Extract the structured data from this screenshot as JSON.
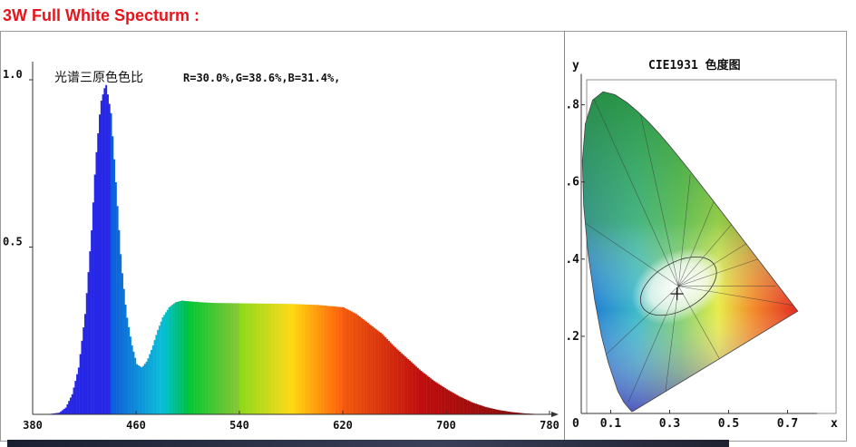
{
  "page": {
    "title": "3W Full White Specturm :"
  },
  "chart_data": [
    {
      "type": "area",
      "annotation": "光谱三原色色比",
      "ratio_text": "R=30.0%,G=38.6%,B=31.4%,",
      "ratios": {
        "R": 30.0,
        "G": 38.6,
        "B": 31.4
      },
      "xlim": [
        380,
        780
      ],
      "ylim": [
        0,
        1.0
      ],
      "x_ticks": [
        "380",
        "460",
        "540",
        "620",
        "700",
        "780"
      ],
      "y_ticks": [
        "1.0",
        "0.5"
      ],
      "x": [
        380,
        390,
        400,
        405,
        410,
        415,
        420,
        425,
        428,
        432,
        436,
        440,
        444,
        448,
        452,
        456,
        460,
        464,
        468,
        472,
        476,
        480,
        485,
        490,
        495,
        500,
        510,
        520,
        540,
        560,
        580,
        600,
        620,
        630,
        640,
        650,
        660,
        670,
        680,
        690,
        700,
        710,
        720,
        730,
        740,
        750,
        760,
        770,
        780
      ],
      "y": [
        0.0,
        0.0,
        0.005,
        0.02,
        0.06,
        0.14,
        0.3,
        0.55,
        0.75,
        0.93,
        0.99,
        0.9,
        0.68,
        0.45,
        0.3,
        0.21,
        0.15,
        0.14,
        0.16,
        0.2,
        0.25,
        0.29,
        0.32,
        0.335,
        0.34,
        0.338,
        0.335,
        0.333,
        0.332,
        0.331,
        0.33,
        0.327,
        0.32,
        0.3,
        0.27,
        0.24,
        0.2,
        0.165,
        0.13,
        0.1,
        0.075,
        0.053,
        0.035,
        0.022,
        0.013,
        0.007,
        0.003,
        0.001,
        0.0
      ]
    },
    {
      "type": "scatter",
      "title": "CIE1931 色度图",
      "xlabel": "x",
      "ylabel": "y",
      "xlim": [
        0,
        0.8
      ],
      "ylim": [
        0,
        0.9
      ],
      "x_ticks": [
        "0.1",
        "0.3",
        "0.5",
        "0.7"
      ],
      "y_ticks": [
        ".8",
        ".6",
        ".4",
        ".2"
      ],
      "origin_label": "0",
      "point": {
        "x": 0.325,
        "y": 0.31
      }
    }
  ]
}
